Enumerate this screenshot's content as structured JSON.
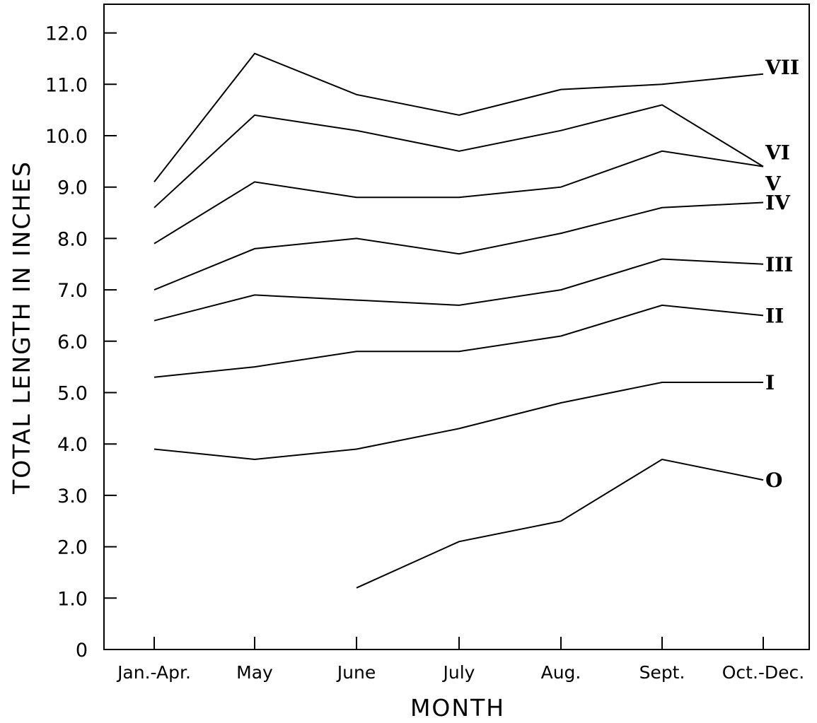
{
  "chart_data": {
    "type": "line",
    "title": "",
    "xlabel": "MONTH",
    "ylabel": "TOTAL LENGTH IN INCHES",
    "categories": [
      "Jan.-Apr.",
      "May",
      "June",
      "July",
      "Aug.",
      "Sept.",
      "Oct.-Dec."
    ],
    "ylim": [
      0,
      12.0
    ],
    "yticks": [
      "0",
      "1.0",
      "2.0",
      "3.0",
      "4.0",
      "5.0",
      "6.0",
      "7.0",
      "8.0",
      "9.0",
      "10.0",
      "11.0",
      "12.0"
    ],
    "grid": false,
    "series": [
      {
        "name": "O",
        "values": [
          null,
          null,
          1.2,
          2.1,
          2.5,
          3.7,
          3.3
        ]
      },
      {
        "name": "I",
        "values": [
          3.9,
          3.7,
          3.9,
          4.3,
          4.8,
          5.2,
          5.2
        ]
      },
      {
        "name": "II",
        "values": [
          5.3,
          5.5,
          5.8,
          5.8,
          6.1,
          6.7,
          6.5
        ]
      },
      {
        "name": "III",
        "values": [
          6.4,
          6.9,
          6.8,
          6.7,
          7.0,
          7.6,
          7.5
        ]
      },
      {
        "name": "IV",
        "values": [
          7.0,
          7.8,
          8.0,
          7.7,
          8.1,
          8.6,
          8.7
        ]
      },
      {
        "name": "V",
        "values": [
          7.9,
          9.1,
          8.8,
          8.8,
          9.0,
          9.7,
          9.4
        ]
      },
      {
        "name": "VI",
        "values": [
          8.6,
          10.4,
          10.1,
          9.7,
          10.1,
          10.6,
          9.4
        ]
      },
      {
        "name": "VII",
        "values": [
          9.1,
          11.6,
          10.8,
          10.4,
          10.9,
          11.0,
          11.2
        ]
      }
    ]
  }
}
